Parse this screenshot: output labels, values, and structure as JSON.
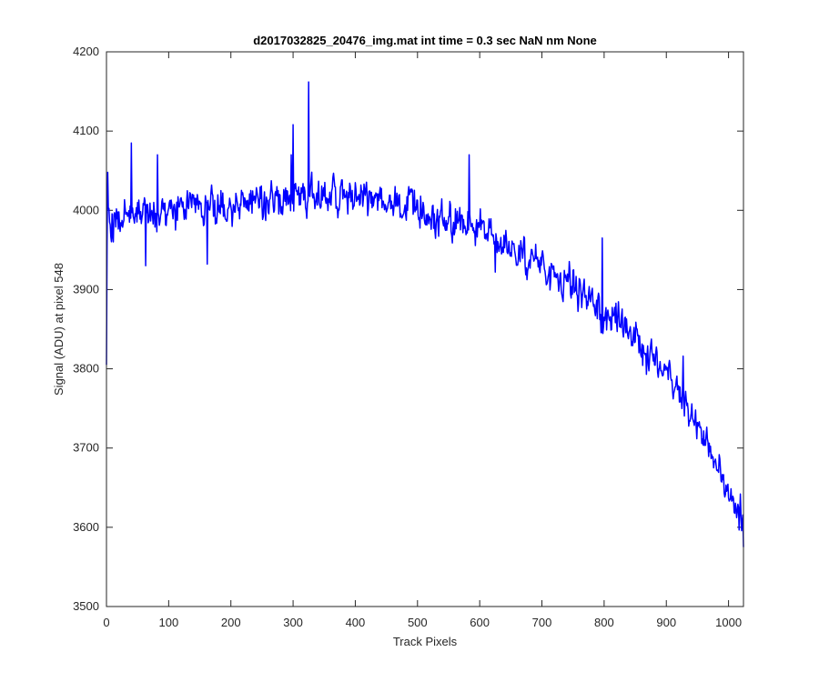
{
  "chart_data": {
    "type": "line",
    "title": "d2017032825_20476_img.mat int time = 0.3 sec  NaN nm None",
    "xlabel": "Track Pixels",
    "ylabel": "Signal (ADU) at pixel 548",
    "xlim": [
      0,
      1024
    ],
    "ylim": [
      3500,
      4200
    ],
    "xticks": [
      0,
      100,
      200,
      300,
      400,
      500,
      600,
      700,
      800,
      900,
      1000
    ],
    "yticks": [
      3500,
      3600,
      3700,
      3800,
      3900,
      4000,
      4100,
      4200
    ],
    "grid": false,
    "box": true,
    "series": [
      {
        "color": "#0000ff",
        "noise_amplitude": 28,
        "trend": {
          "x": [
            0,
            1,
            3,
            6,
            10,
            20,
            50,
            100,
            150,
            200,
            250,
            300,
            350,
            400,
            450,
            500,
            550,
            600,
            650,
            700,
            750,
            800,
            850,
            900,
            950,
            1000,
            1024
          ],
          "y": [
            3805,
            3960,
            3985,
            3980,
            3985,
            3990,
            3995,
            4000,
            4005,
            4010,
            4015,
            4018,
            4020,
            4018,
            4012,
            4000,
            3988,
            3975,
            3955,
            3930,
            3905,
            3875,
            3840,
            3795,
            3730,
            3640,
            3600
          ]
        },
        "spikes": [
          {
            "x": 2,
            "y": 4048
          },
          {
            "x": 40,
            "y": 4085
          },
          {
            "x": 63,
            "y": 3930
          },
          {
            "x": 82,
            "y": 4070
          },
          {
            "x": 162,
            "y": 3932
          },
          {
            "x": 297,
            "y": 4070
          },
          {
            "x": 300,
            "y": 4108
          },
          {
            "x": 325,
            "y": 4162
          },
          {
            "x": 583,
            "y": 4070
          },
          {
            "x": 625,
            "y": 3922
          },
          {
            "x": 742,
            "y": 3910
          },
          {
            "x": 793,
            "y": 3862
          },
          {
            "x": 797,
            "y": 3965
          },
          {
            "x": 800,
            "y": 3865
          },
          {
            "x": 868,
            "y": 3793
          },
          {
            "x": 927,
            "y": 3816
          },
          {
            "x": 947,
            "y": 3748
          },
          {
            "x": 1019,
            "y": 3642
          },
          {
            "x": 1024,
            "y": 3575
          }
        ]
      }
    ]
  }
}
